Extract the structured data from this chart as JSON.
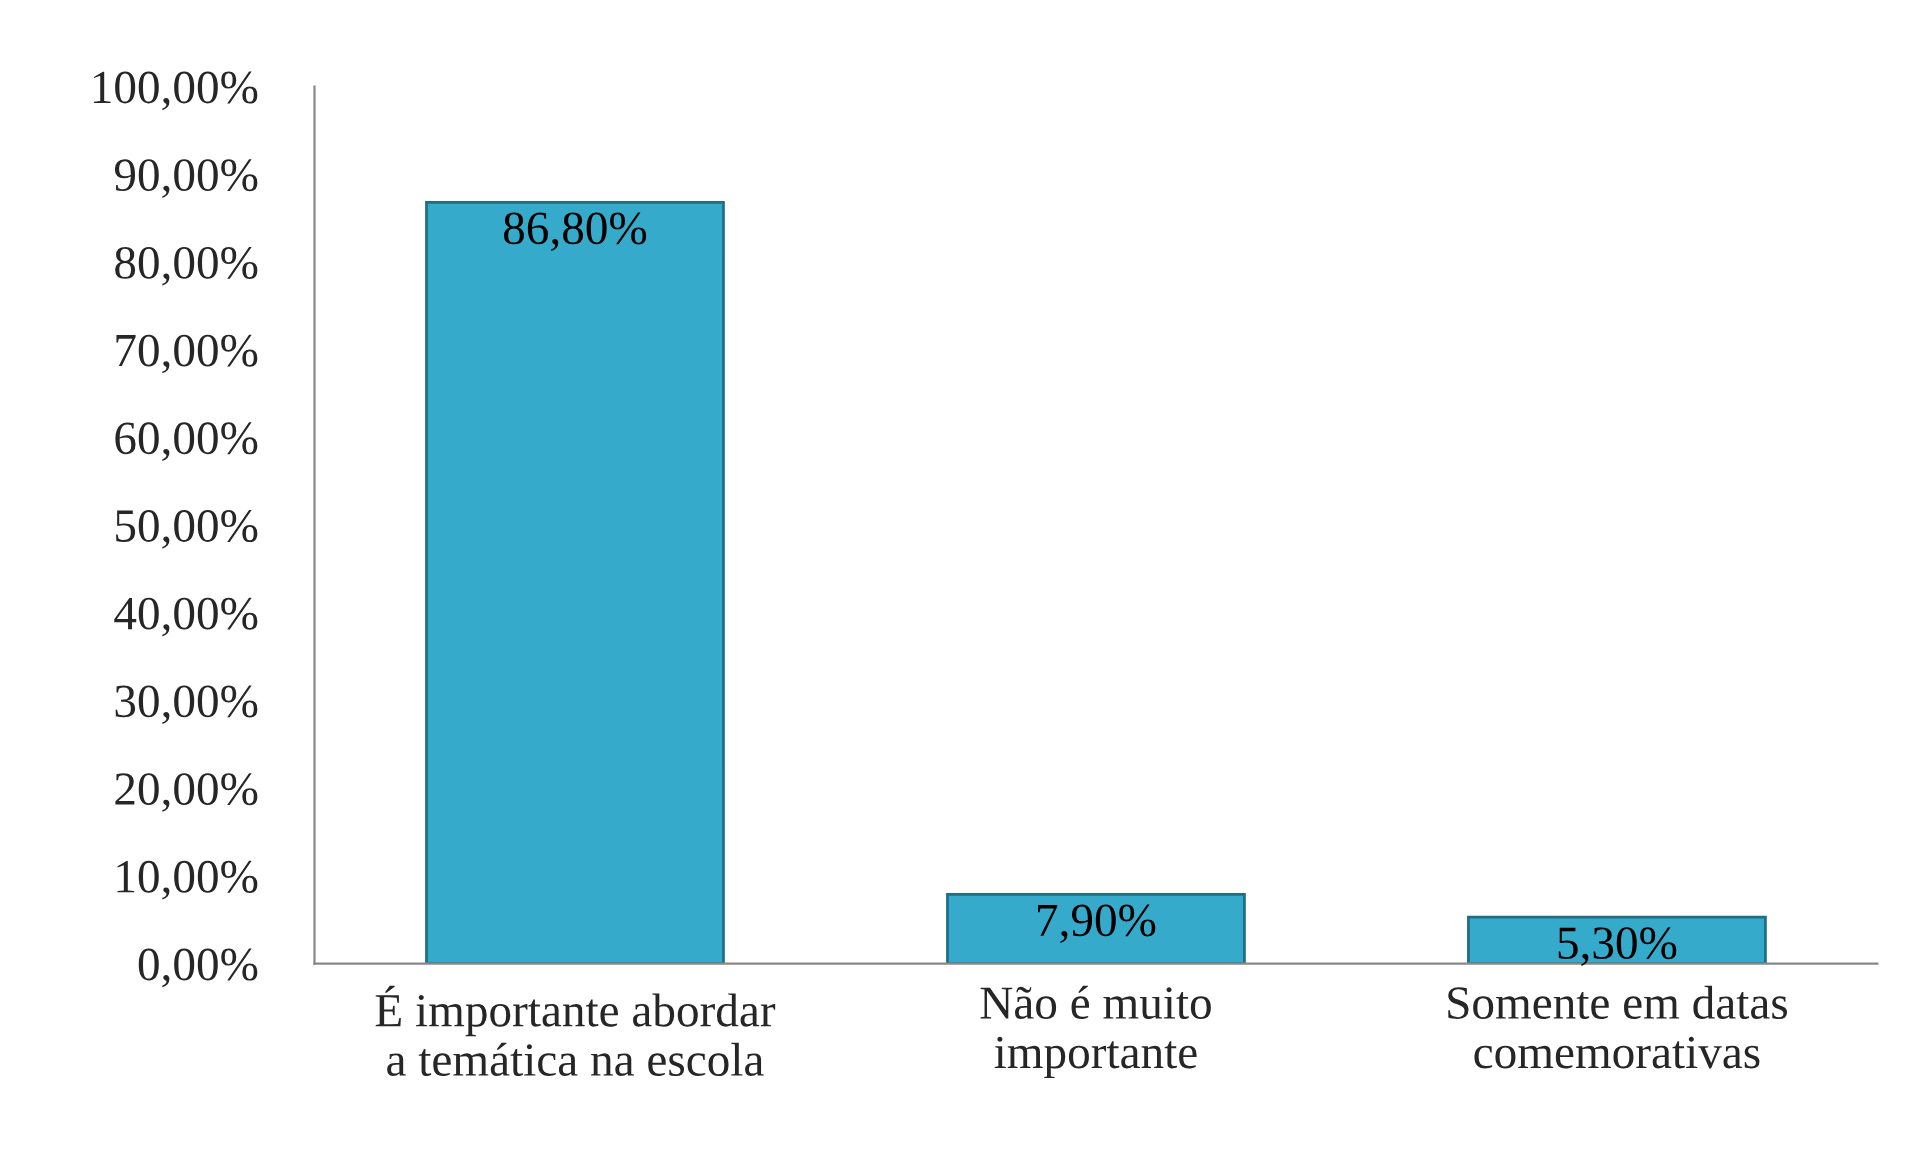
{
  "chart_data": {
    "type": "bar",
    "categories": [
      "É importante abordar\na temática na escola",
      "Não é muito\nimportante",
      "Somente em datas\ncomemorativas"
    ],
    "values": [
      86.8,
      7.9,
      5.3
    ],
    "color": "#36aacb",
    "value_labels": [
      "86,80%",
      "7,90%",
      "5,30%"
    ],
    "ylim": [
      0,
      100
    ],
    "yticks": [
      {
        "value": 0,
        "label": "0,00%"
      },
      {
        "value": 10,
        "label": "10,00%"
      },
      {
        "value": 20,
        "label": "20,00%"
      },
      {
        "value": 30,
        "label": "30,00%"
      },
      {
        "value": 40,
        "label": "40,00%"
      },
      {
        "value": 50,
        "label": "50,00%"
      },
      {
        "value": 60,
        "label": "60,00%"
      },
      {
        "value": 70,
        "label": "70,00%"
      },
      {
        "value": 80,
        "label": "80,00%"
      },
      {
        "value": 90,
        "label": "90,00%"
      },
      {
        "value": 100,
        "label": "100,00%"
      }
    ],
    "grid": false,
    "legend": false
  }
}
